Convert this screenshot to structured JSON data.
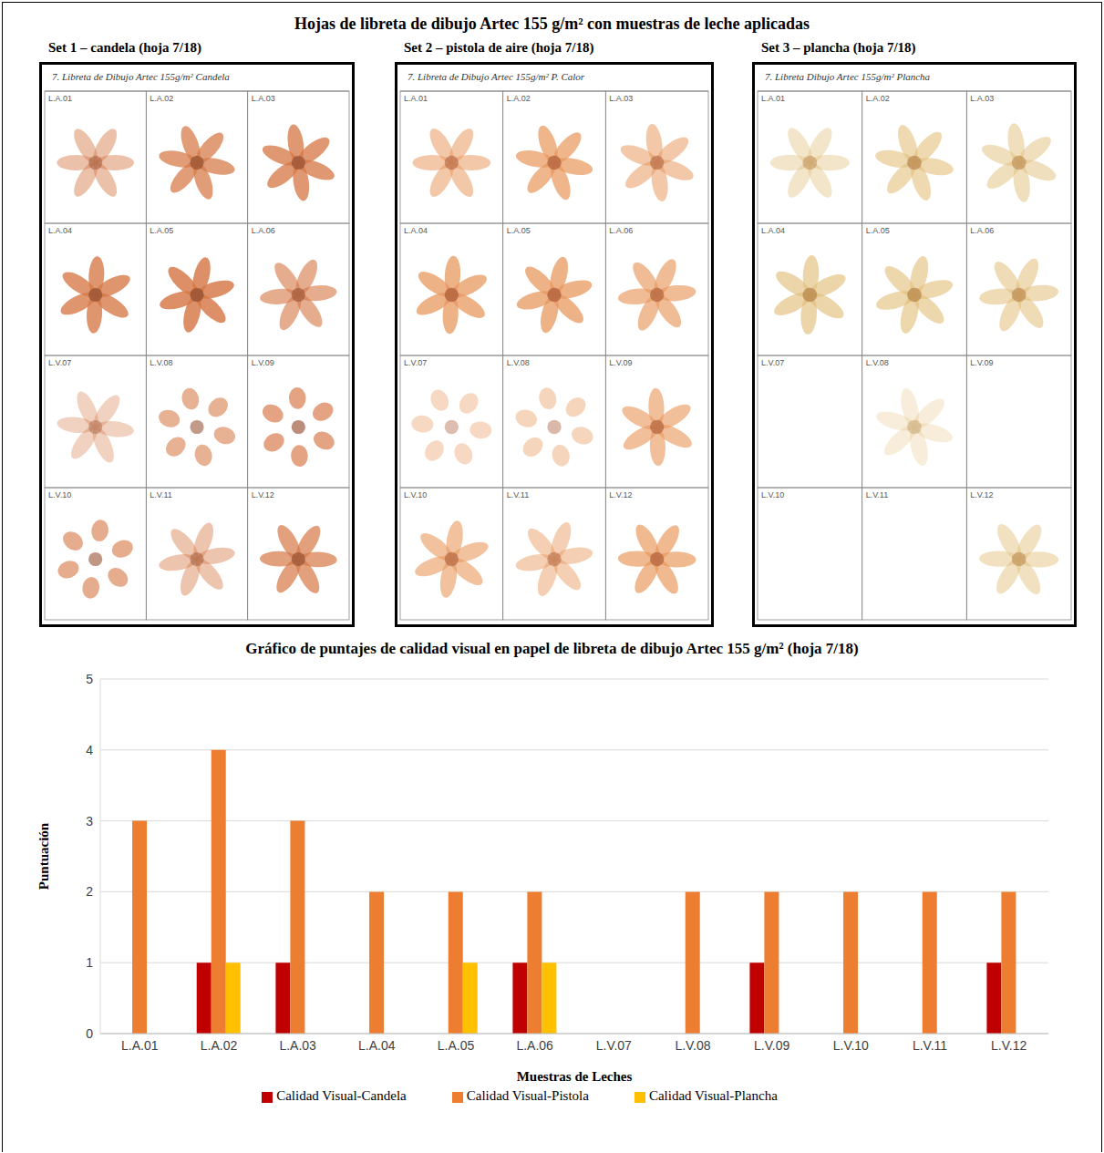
{
  "title": "Hojas de libreta de dibujo Artec 155 g/m² con muestras de leche aplicadas",
  "panels": [
    {
      "title": "Set 1 – candela (hoja 7/18)",
      "header": "7. Libreta de Dibujo Artec 155g/m² Candela"
    },
    {
      "title": "Set 2 – pistola de aire (hoja 7/18)",
      "header": "7. Libreta de Dibujo Artec 155g/m² P. Calor"
    },
    {
      "title": "Set 3 – plancha (hoja 7/18)",
      "header": "7. Libreta Dibujo Artec 155g/m² Plancha"
    }
  ],
  "chart_data": {
    "type": "bar",
    "title": "Gráfico de puntajes de calidad visual en papel de libreta de dibujo Artec 155 g/m² (hoja 7/18)",
    "x_label": "Muestras de Leches",
    "y_label": "Puntuación",
    "categories": [
      "L.A.01",
      "L.A.02",
      "L.A.03",
      "L.A.04",
      "L.A.05",
      "L.A.06",
      "L.V.07",
      "L.V.08",
      "L.V.09",
      "L.V.10",
      "L.V.11",
      "L.V.12"
    ],
    "series": [
      {
        "name": "Calidad Visual-Candela",
        "color": "#c00000",
        "values": [
          0,
          1,
          1,
          0,
          0,
          1,
          0,
          0,
          1,
          0,
          0,
          1
        ]
      },
      {
        "name": "Calidad Visual-Pistola",
        "color": "#ed7d31",
        "values": [
          3,
          4,
          3,
          2,
          2,
          2,
          0,
          2,
          2,
          2,
          2,
          2
        ]
      },
      {
        "name": "Calidad Visual-Plancha",
        "color": "#ffc000",
        "values": [
          0,
          1,
          0,
          0,
          1,
          1,
          0,
          0,
          0,
          0,
          0,
          0
        ]
      }
    ],
    "ylim": [
      0,
      5
    ],
    "yticks": [
      0,
      1,
      2,
      3,
      4,
      5
    ],
    "grid": true,
    "legend": "bottom"
  }
}
